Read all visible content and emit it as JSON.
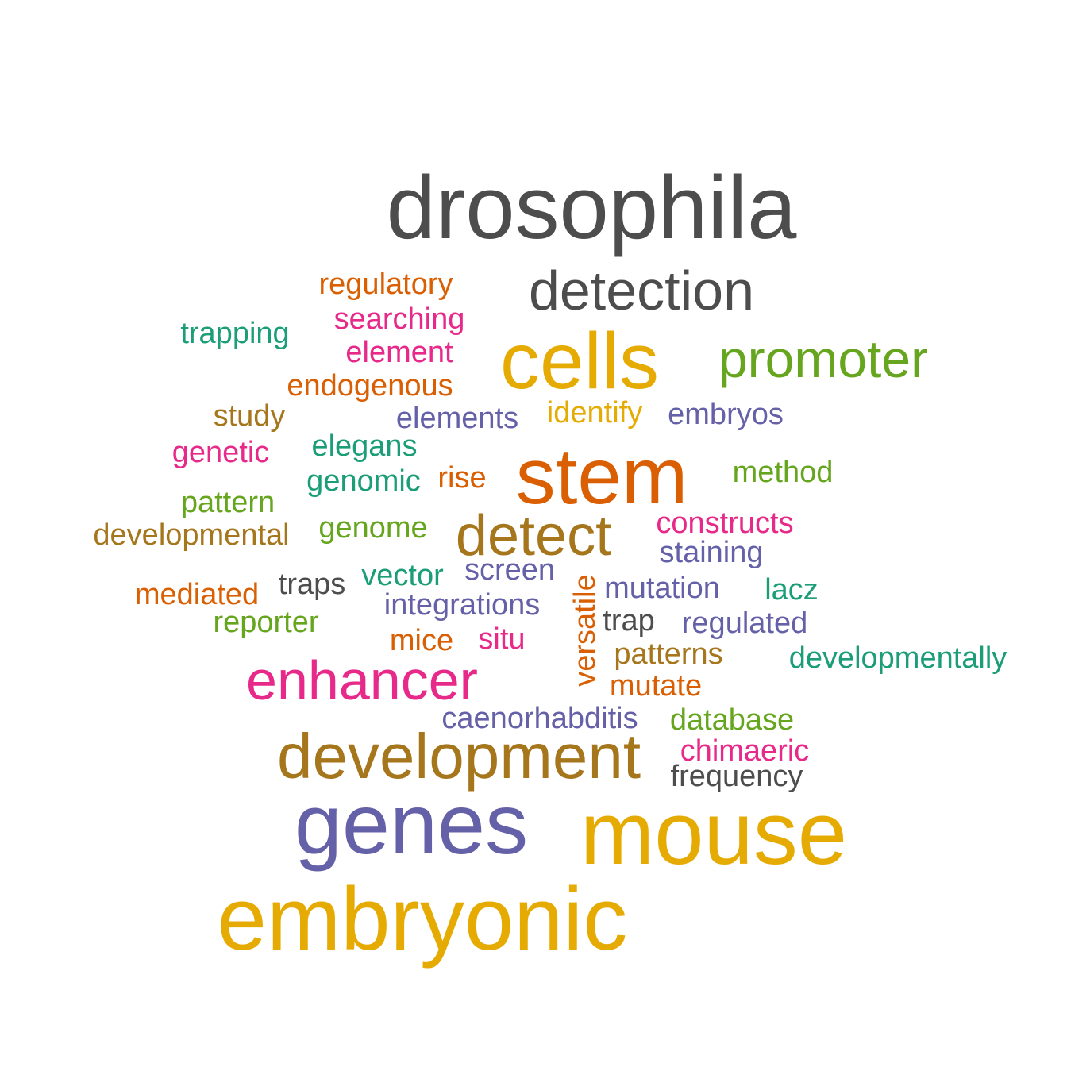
{
  "colors": {
    "gray": "#4d4d4d",
    "teal": "#1b9e77",
    "orange": "#d95f02",
    "purple": "#6561a8",
    "magenta": "#e7298a",
    "green": "#66a61e",
    "gold": "#e6ab02",
    "brown": "#a6761d"
  },
  "words": [
    {
      "text": "drosophila",
      "color": "gray"
    },
    {
      "text": "detection",
      "color": "gray"
    },
    {
      "text": "regulatory",
      "color": "orange"
    },
    {
      "text": "searching",
      "color": "magenta"
    },
    {
      "text": "trapping",
      "color": "teal"
    },
    {
      "text": "element",
      "color": "magenta"
    },
    {
      "text": "cells",
      "color": "gold"
    },
    {
      "text": "promoter",
      "color": "green"
    },
    {
      "text": "endogenous",
      "color": "orange"
    },
    {
      "text": "study",
      "color": "brown"
    },
    {
      "text": "elements",
      "color": "purple"
    },
    {
      "text": "identify",
      "color": "gold"
    },
    {
      "text": "embryos",
      "color": "purple"
    },
    {
      "text": "genetic",
      "color": "magenta"
    },
    {
      "text": "elegans",
      "color": "teal"
    },
    {
      "text": "stem",
      "color": "orange"
    },
    {
      "text": "method",
      "color": "green"
    },
    {
      "text": "genomic",
      "color": "teal"
    },
    {
      "text": "rise",
      "color": "orange"
    },
    {
      "text": "pattern",
      "color": "green"
    },
    {
      "text": "developmental",
      "color": "brown"
    },
    {
      "text": "genome",
      "color": "green"
    },
    {
      "text": "detect",
      "color": "brown"
    },
    {
      "text": "constructs",
      "color": "magenta"
    },
    {
      "text": "staining",
      "color": "purple"
    },
    {
      "text": "traps",
      "color": "gray"
    },
    {
      "text": "vector",
      "color": "teal"
    },
    {
      "text": "screen",
      "color": "purple"
    },
    {
      "text": "mediated",
      "color": "orange"
    },
    {
      "text": "versatile",
      "color": "orange"
    },
    {
      "text": "mutation",
      "color": "purple"
    },
    {
      "text": "lacz",
      "color": "teal"
    },
    {
      "text": "integrations",
      "color": "purple"
    },
    {
      "text": "reporter",
      "color": "green"
    },
    {
      "text": "trap",
      "color": "gray"
    },
    {
      "text": "regulated",
      "color": "purple"
    },
    {
      "text": "mice",
      "color": "orange"
    },
    {
      "text": "situ",
      "color": "magenta"
    },
    {
      "text": "patterns",
      "color": "brown"
    },
    {
      "text": "developmentally",
      "color": "teal"
    },
    {
      "text": "enhancer",
      "color": "magenta"
    },
    {
      "text": "mutate",
      "color": "orange"
    },
    {
      "text": "caenorhabditis",
      "color": "purple"
    },
    {
      "text": "database",
      "color": "green"
    },
    {
      "text": "development",
      "color": "brown"
    },
    {
      "text": "chimaeric",
      "color": "magenta"
    },
    {
      "text": "frequency",
      "color": "gray"
    },
    {
      "text": "genes",
      "color": "purple"
    },
    {
      "text": "mouse",
      "color": "gold"
    },
    {
      "text": "embryonic",
      "color": "gold"
    }
  ]
}
